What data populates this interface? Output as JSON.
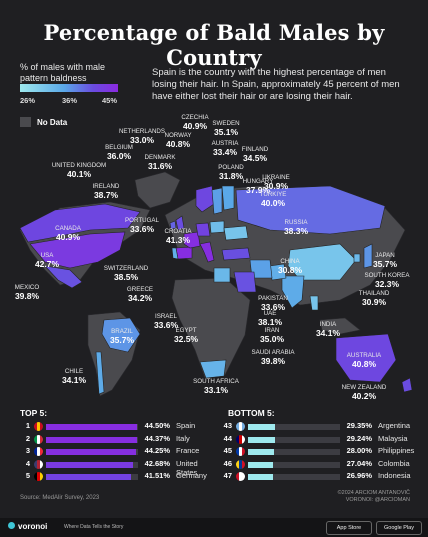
{
  "title": "Percentage of Bald Males by Country",
  "legend": {
    "title": "% of males with male pattern baldness",
    "ticks": [
      "26%",
      "36%",
      "45%"
    ],
    "no_data": "No Data"
  },
  "intro": "Spain is the country with the highest percentage of men losing their hair. In Spain, approximately 45 percent of men have either lost their hair or are losing their hair.",
  "colors": {
    "background": "#1f1f22",
    "land_no_data": "#4a4a4e",
    "low": "#9ee9ee",
    "mid": "#5aa8e8",
    "high": "#8a2ae0"
  },
  "chart_data": {
    "type": "choropleth map",
    "value_unit": "%",
    "color_range": [
      26,
      45
    ],
    "countries": [
      {
        "name": "NETHERLANDS",
        "value": 33.0
      },
      {
        "name": "NORWAY",
        "value": 40.8
      },
      {
        "name": "CZECHIA",
        "value": 40.9
      },
      {
        "name": "SWEDEN",
        "value": 35.1
      },
      {
        "name": "BELGIUM",
        "value": 36.0
      },
      {
        "name": "DENMARK",
        "value": 31.6
      },
      {
        "name": "AUSTRIA",
        "value": 33.4
      },
      {
        "name": "FINLAND",
        "value": 34.5
      },
      {
        "name": "UNITED KINGDOM",
        "value": 40.1
      },
      {
        "name": "POLAND",
        "value": 31.8
      },
      {
        "name": "UKRAINE",
        "value": 30.9
      },
      {
        "name": "HUNGARY",
        "value": 37.9
      },
      {
        "name": "IRELAND",
        "value": 38.7
      },
      {
        "name": "TÜRKIYE",
        "value": 40.0
      },
      {
        "name": "CANADA",
        "value": 40.9
      },
      {
        "name": "PORTUGAL",
        "value": 33.6
      },
      {
        "name": "CROATIA",
        "value": 41.3
      },
      {
        "name": "RUSSIA",
        "value": 38.3
      },
      {
        "name": "USA",
        "value": 42.7
      },
      {
        "name": "SWITZERLAND",
        "value": 38.5
      },
      {
        "name": "CHINA",
        "value": 30.8
      },
      {
        "name": "JAPAN",
        "value": 35.7
      },
      {
        "name": "SOUTH KOREA",
        "value": 32.3
      },
      {
        "name": "GREECE",
        "value": 34.2
      },
      {
        "name": "MEXICO",
        "value": 39.8
      },
      {
        "name": "THAILAND",
        "value": 30.9
      },
      {
        "name": "PAKISTAN",
        "value": 33.6
      },
      {
        "name": "ISRAEL",
        "value": 33.6
      },
      {
        "name": "UAE",
        "value": 38.1
      },
      {
        "name": "EGYPT",
        "value": 32.5
      },
      {
        "name": "BRAZIL",
        "value": 35.7
      },
      {
        "name": "IRAN",
        "value": 35.0
      },
      {
        "name": "INDIA",
        "value": 34.1
      },
      {
        "name": "SAUDI ARABIA",
        "value": 39.8
      },
      {
        "name": "AUSTRALIA",
        "value": 40.8
      },
      {
        "name": "CHILE",
        "value": 34.1
      },
      {
        "name": "SOUTH AFRICA",
        "value": 33.1
      },
      {
        "name": "NEW ZEALAND",
        "value": 40.2
      }
    ],
    "top5": [
      {
        "rank": "1",
        "country": "Spain",
        "value": 44.5,
        "label": "44.50%"
      },
      {
        "rank": "2",
        "country": "Italy",
        "value": 44.37,
        "label": "44.37%"
      },
      {
        "rank": "3",
        "country": "France",
        "value": 44.25,
        "label": "44.25%"
      },
      {
        "rank": "4",
        "country": "United States",
        "value": 42.68,
        "label": "42.68%"
      },
      {
        "rank": "5",
        "country": "Germany",
        "value": 41.51,
        "label": "41.51%"
      }
    ],
    "bottom5": [
      {
        "rank": "43",
        "country": "Argentina",
        "value": 29.35,
        "label": "29.35%"
      },
      {
        "rank": "44",
        "country": "Malaysia",
        "value": 29.24,
        "label": "29.24%"
      },
      {
        "rank": "45",
        "country": "Philippines",
        "value": 28.0,
        "label": "28.00%"
      },
      {
        "rank": "46",
        "country": "Colombia",
        "value": 27.04,
        "label": "27.04%"
      },
      {
        "rank": "47",
        "country": "Indonesia",
        "value": 26.96,
        "label": "26.96%"
      }
    ]
  },
  "sections": {
    "top_title": "TOP 5:",
    "bottom_title": "BOTTOM 5:"
  },
  "source": "Source: MedAlir Survey, 2023",
  "credit": [
    "©2024 ARCIOM ANTANOVIČ",
    "VORONOI: @ARCIOMAN"
  ],
  "footer": {
    "brand": "voronoi",
    "tagline": "Where Data Tells the Story",
    "app_store": "App Store",
    "google_play": "Google Play"
  }
}
